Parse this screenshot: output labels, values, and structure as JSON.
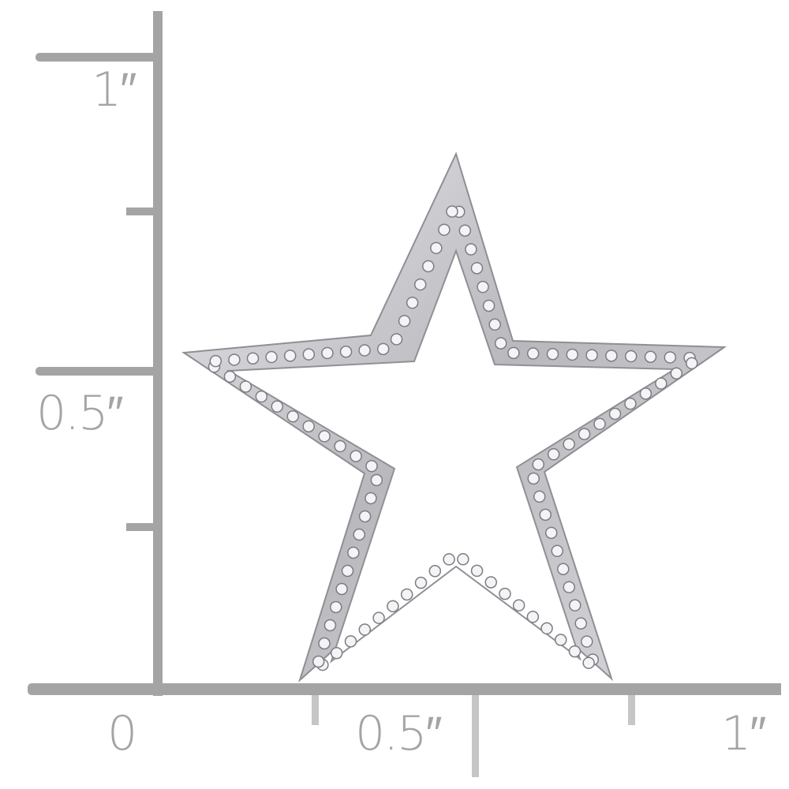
{
  "ruler": {
    "unit": "inch",
    "vertical_labels": [
      "1″",
      "0.5″"
    ],
    "horizontal_labels": [
      "0",
      "0.5″",
      "1″"
    ],
    "color": "#a4a4a4",
    "minor_tick_color": "#c6c6c6"
  },
  "product": {
    "subject": "star-pendant",
    "metal_color": "#c8c8cc",
    "stone_color": "#f4f4f6"
  }
}
